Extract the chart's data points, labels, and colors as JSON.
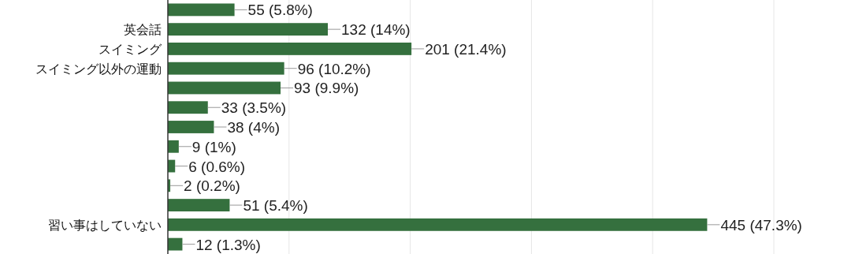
{
  "chart_data": {
    "type": "bar",
    "orientation": "horizontal",
    "categories": [
      null,
      "英会話",
      "スイミング",
      "スイミング以外の運動",
      null,
      null,
      null,
      null,
      null,
      null,
      null,
      "習い事はしていない",
      null
    ],
    "values": [
      55,
      132,
      201,
      96,
      93,
      33,
      38,
      9,
      6,
      2,
      51,
      445,
      12
    ],
    "value_labels": [
      "55 (5.8%)",
      "132 (14%)",
      "201 (21.4%)",
      "96 (10.2%)",
      "93 (9.9%)",
      "33 (3.5%)",
      "38 (4%)",
      "9 (1%)",
      "6 (0.6%)",
      "2 (0.2%)",
      "51 (5.4%)",
      "445 (47.3%)",
      "12 (1.3%)"
    ],
    "color": "#35703e",
    "xticks": [
      {
        "value": 100,
        "label": null
      },
      {
        "value": 200,
        "label": null
      },
      {
        "value": 300,
        "label": null
      },
      {
        "value": 400,
        "label": null
      },
      {
        "value": 500,
        "label": null
      }
    ],
    "grid": "x"
  }
}
